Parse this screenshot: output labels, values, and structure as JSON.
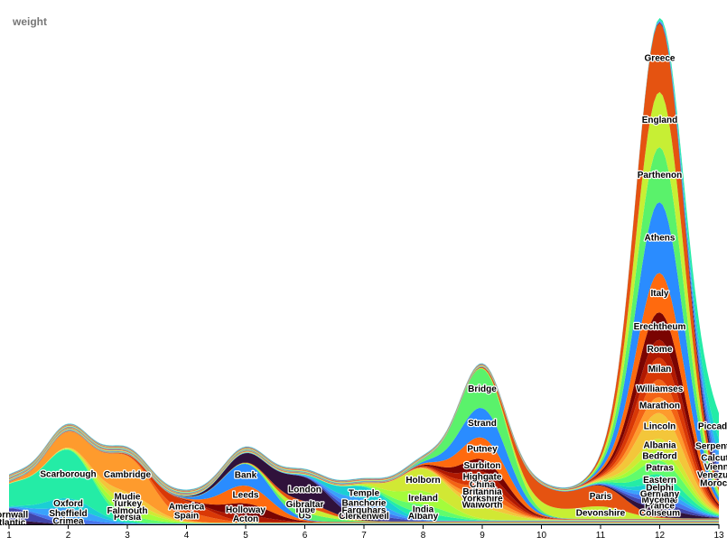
{
  "chart_data": {
    "type": "area",
    "subtype": "streamgraph",
    "ylabel": "weight",
    "x_ticks": [
      "1",
      "2",
      "3",
      "4",
      "5",
      "6",
      "7",
      "8",
      "9",
      "10",
      "11",
      "12",
      "13"
    ],
    "xlim": [
      1,
      13
    ],
    "baseline": "bottom",
    "peak_total": 560,
    "colors": [
      "#30123b",
      "#4145ab",
      "#4675ed",
      "#39a2fc",
      "#1bcfd4",
      "#24eca6",
      "#61fc6c",
      "#a4fc3b",
      "#d1e834",
      "#f3c63a",
      "#fe9b2d",
      "#f36315",
      "#d93806",
      "#b11901",
      "#7a0402",
      "#ff6a0e",
      "#2a8cff",
      "#5af26b",
      "#c7ef34",
      "#e55311"
    ],
    "series": [
      {
        "name": "Atlantic",
        "peaks": [
          [
            1,
            4
          ]
        ]
      },
      {
        "name": "Cornwall",
        "peaks": [
          [
            1,
            12
          ]
        ]
      },
      {
        "name": "Crimea",
        "peaks": [
          [
            2,
            5
          ]
        ]
      },
      {
        "name": "Sheffield",
        "peaks": [
          [
            2,
            10
          ]
        ]
      },
      {
        "name": "Oxford",
        "peaks": [
          [
            2,
            10
          ]
        ]
      },
      {
        "name": "Scarborough",
        "peaks": [
          [
            2,
            48
          ],
          [
            1,
            20
          ]
        ]
      },
      {
        "name": "Persia",
        "peaks": [
          [
            3,
            5
          ]
        ]
      },
      {
        "name": "Falmouth",
        "peaks": [
          [
            3,
            8
          ]
        ]
      },
      {
        "name": "Turkey",
        "peaks": [
          [
            3,
            6
          ]
        ]
      },
      {
        "name": "Mudie",
        "peaks": [
          [
            3,
            8
          ]
        ]
      },
      {
        "name": "Cambridge",
        "peaks": [
          [
            3,
            36
          ],
          [
            2,
            14
          ]
        ]
      },
      {
        "name": "Spain",
        "peaks": [
          [
            4,
            8
          ]
        ]
      },
      {
        "name": "America",
        "peaks": [
          [
            4,
            10
          ]
        ]
      },
      {
        "name": "Acton",
        "peaks": [
          [
            5,
            6
          ]
        ]
      },
      {
        "name": "Holloway",
        "peaks": [
          [
            5,
            12
          ]
        ]
      },
      {
        "name": "Leeds",
        "peaks": [
          [
            5,
            18
          ]
        ]
      },
      {
        "name": "Bank",
        "peaks": [
          [
            5,
            22
          ]
        ]
      },
      {
        "name": "US",
        "peaks": [
          [
            6,
            6
          ]
        ]
      },
      {
        "name": "Tube",
        "peaks": [
          [
            6,
            6
          ]
        ]
      },
      {
        "name": "Gibraltar",
        "peaks": [
          [
            6,
            5
          ]
        ]
      },
      {
        "name": "London",
        "peaks": [
          [
            6,
            24
          ],
          [
            5,
            8
          ]
        ]
      },
      {
        "name": "Clerkenwell",
        "peaks": [
          [
            7,
            6
          ]
        ]
      },
      {
        "name": "Farquhars",
        "peaks": [
          [
            7,
            6
          ]
        ]
      },
      {
        "name": "Banchorie",
        "peaks": [
          [
            7,
            8
          ]
        ]
      },
      {
        "name": "Temple",
        "peaks": [
          [
            7,
            12
          ]
        ]
      },
      {
        "name": "Albany",
        "peaks": [
          [
            8,
            6
          ]
        ]
      },
      {
        "name": "India",
        "peaks": [
          [
            8,
            8
          ]
        ]
      },
      {
        "name": "Ireland",
        "peaks": [
          [
            8,
            14
          ]
        ]
      },
      {
        "name": "Holborn",
        "peaks": [
          [
            8,
            22
          ],
          [
            9,
            10
          ]
        ]
      },
      {
        "name": "Walworth",
        "peaks": [
          [
            9,
            6
          ]
        ]
      },
      {
        "name": "Yorkshire",
        "peaks": [
          [
            9,
            6
          ]
        ]
      },
      {
        "name": "Britannia",
        "peaks": [
          [
            9,
            8
          ]
        ]
      },
      {
        "name": "China",
        "peaks": [
          [
            9,
            6
          ]
        ]
      },
      {
        "name": "Highgate",
        "peaks": [
          [
            9,
            10
          ]
        ]
      },
      {
        "name": "Surbiton",
        "peaks": [
          [
            9,
            12
          ]
        ]
      },
      {
        "name": "Putney",
        "peaks": [
          [
            9,
            22
          ]
        ]
      },
      {
        "name": "Strand",
        "peaks": [
          [
            9,
            30
          ]
        ]
      },
      {
        "name": "Bridge",
        "peaks": [
          [
            9,
            40
          ]
        ]
      },
      {
        "name": "Devonshire",
        "peaks": [
          [
            11,
            12
          ],
          [
            10,
            8
          ]
        ]
      },
      {
        "name": "Paris",
        "peaks": [
          [
            11,
            20
          ],
          [
            10,
            16
          ]
        ]
      },
      {
        "name": "Coliseum",
        "peaks": [
          [
            12,
            8
          ]
        ]
      },
      {
        "name": "France",
        "peaks": [
          [
            12,
            6
          ]
        ]
      },
      {
        "name": "Mycenæ",
        "peaks": [
          [
            12,
            6
          ]
        ]
      },
      {
        "name": "Germany",
        "peaks": [
          [
            12,
            6
          ]
        ]
      },
      {
        "name": "Delphi",
        "peaks": [
          [
            12,
            6
          ]
        ]
      },
      {
        "name": "Eastern",
        "peaks": [
          [
            12,
            10
          ]
        ]
      },
      {
        "name": "Patras",
        "peaks": [
          [
            12,
            14
          ]
        ]
      },
      {
        "name": "Bedford",
        "peaks": [
          [
            12,
            10
          ]
        ]
      },
      {
        "name": "Albania",
        "peaks": [
          [
            12,
            12
          ]
        ]
      },
      {
        "name": "Lincoln",
        "peaks": [
          [
            12,
            26
          ]
        ]
      },
      {
        "name": "Marathon",
        "peaks": [
          [
            12,
            16
          ]
        ]
      },
      {
        "name": "Williamses",
        "peaks": [
          [
            12,
            18
          ]
        ]
      },
      {
        "name": "Milan",
        "peaks": [
          [
            12,
            22
          ]
        ]
      },
      {
        "name": "Rome",
        "peaks": [
          [
            12,
            18
          ]
        ]
      },
      {
        "name": "Erechtheum",
        "peaks": [
          [
            12,
            28
          ]
        ]
      },
      {
        "name": "Italy",
        "peaks": [
          [
            12,
            40
          ]
        ]
      },
      {
        "name": "Athens",
        "peaks": [
          [
            12,
            72
          ]
        ]
      },
      {
        "name": "Parthenon",
        "peaks": [
          [
            12,
            56
          ]
        ]
      },
      {
        "name": "England",
        "peaks": [
          [
            12,
            56
          ]
        ]
      },
      {
        "name": "Greece",
        "peaks": [
          [
            12,
            70
          ]
        ]
      },
      {
        "name": "Morocco",
        "peaks": [
          [
            13,
            8
          ]
        ]
      },
      {
        "name": "Venezuela",
        "peaks": [
          [
            13,
            8
          ]
        ]
      },
      {
        "name": "Vienna",
        "peaks": [
          [
            13,
            8
          ]
        ]
      },
      {
        "name": "Calcutta",
        "peaks": [
          [
            13,
            10
          ]
        ]
      },
      {
        "name": "Serpentine",
        "peaks": [
          [
            13,
            14
          ]
        ]
      },
      {
        "name": "Piccadilly",
        "peaks": [
          [
            13,
            26
          ]
        ]
      }
    ]
  }
}
